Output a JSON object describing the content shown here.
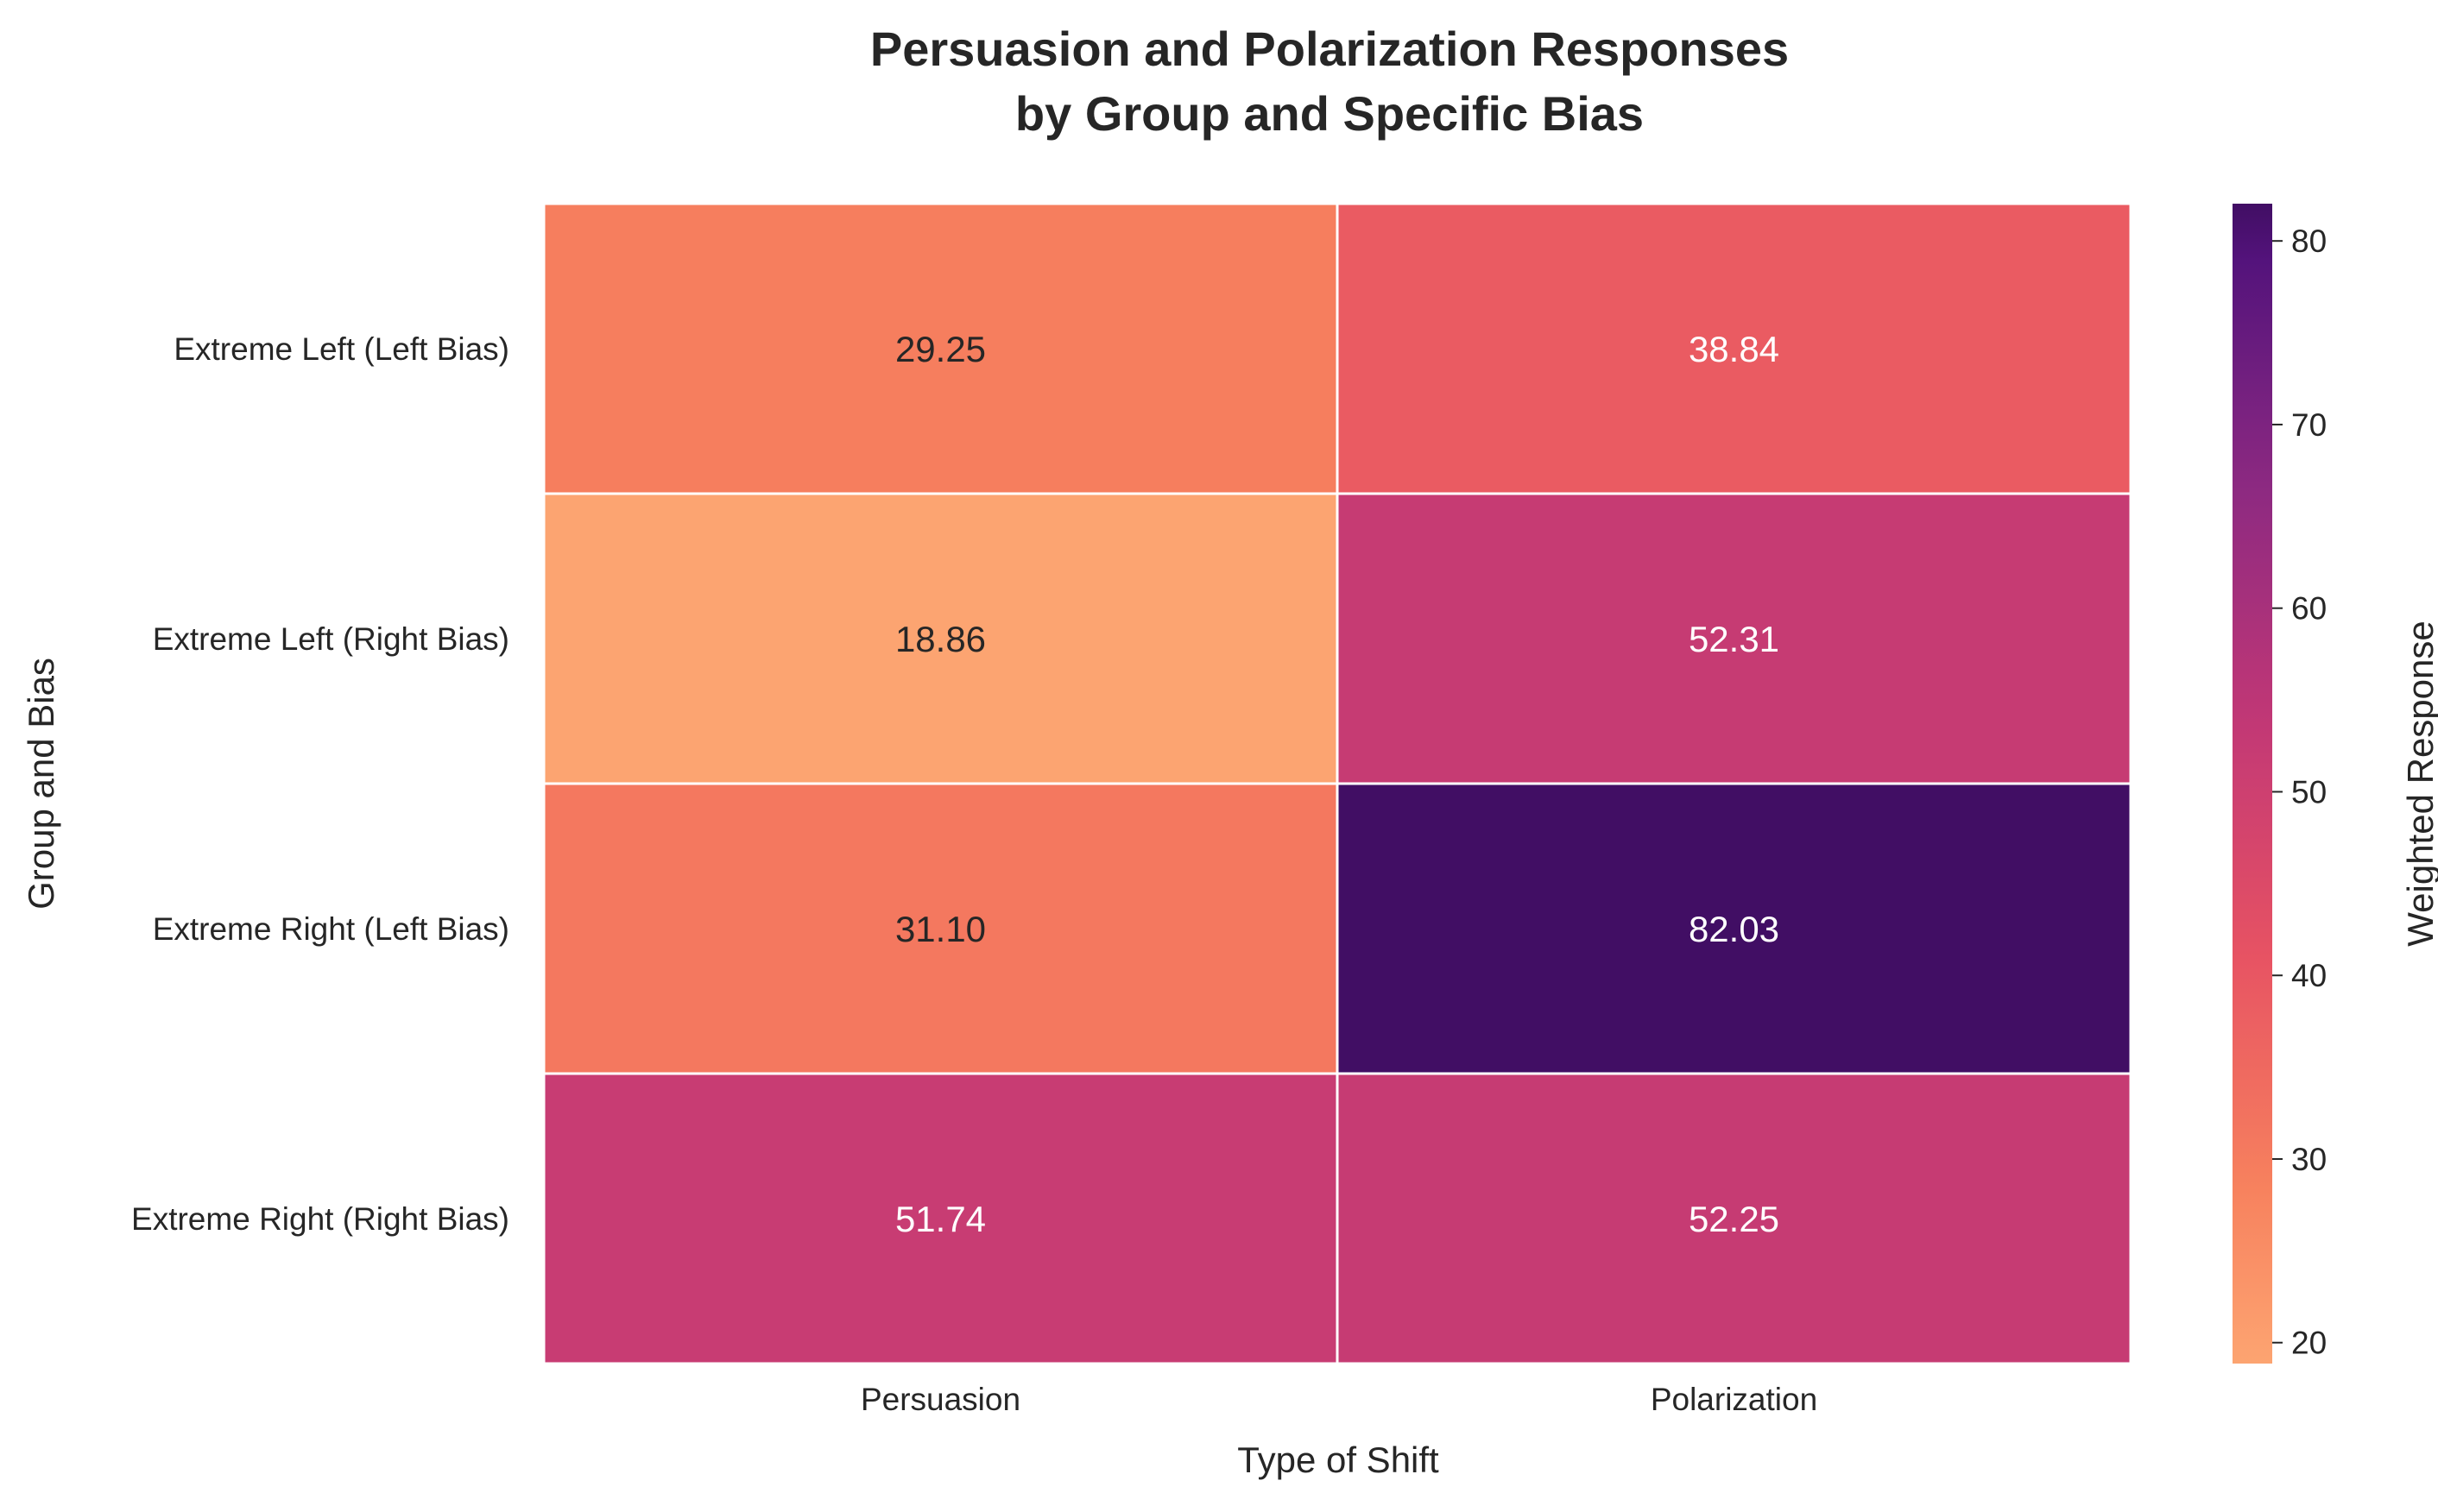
{
  "chart_data": {
    "type": "heatmap",
    "title_lines": [
      "Persuasion and Polarization Responses",
      "by Group and Specific Bias"
    ],
    "xlabel": "Type of Shift",
    "ylabel": "Group and Bias",
    "x_categories": [
      "Persuasion",
      "Polarization"
    ],
    "y_categories": [
      "Extreme Left (Left Bias)",
      "Extreme Left (Right Bias)",
      "Extreme Right (Left Bias)",
      "Extreme Right (Right Bias)"
    ],
    "values": [
      [
        29.25,
        38.84
      ],
      [
        18.86,
        52.31
      ],
      [
        31.1,
        82.03
      ],
      [
        51.74,
        52.25
      ]
    ],
    "value_format": "0.00",
    "colorbar": {
      "label": "Weighted Response",
      "range": [
        18.86,
        82.03
      ],
      "ticks": [
        20,
        30,
        40,
        50,
        60,
        70,
        80
      ],
      "colormap": "magma_r"
    },
    "colors": {
      "text_dark": "#262626",
      "cell_border": "#ffffff",
      "label_light": "#ffffff",
      "label_dark": "#262626"
    }
  }
}
